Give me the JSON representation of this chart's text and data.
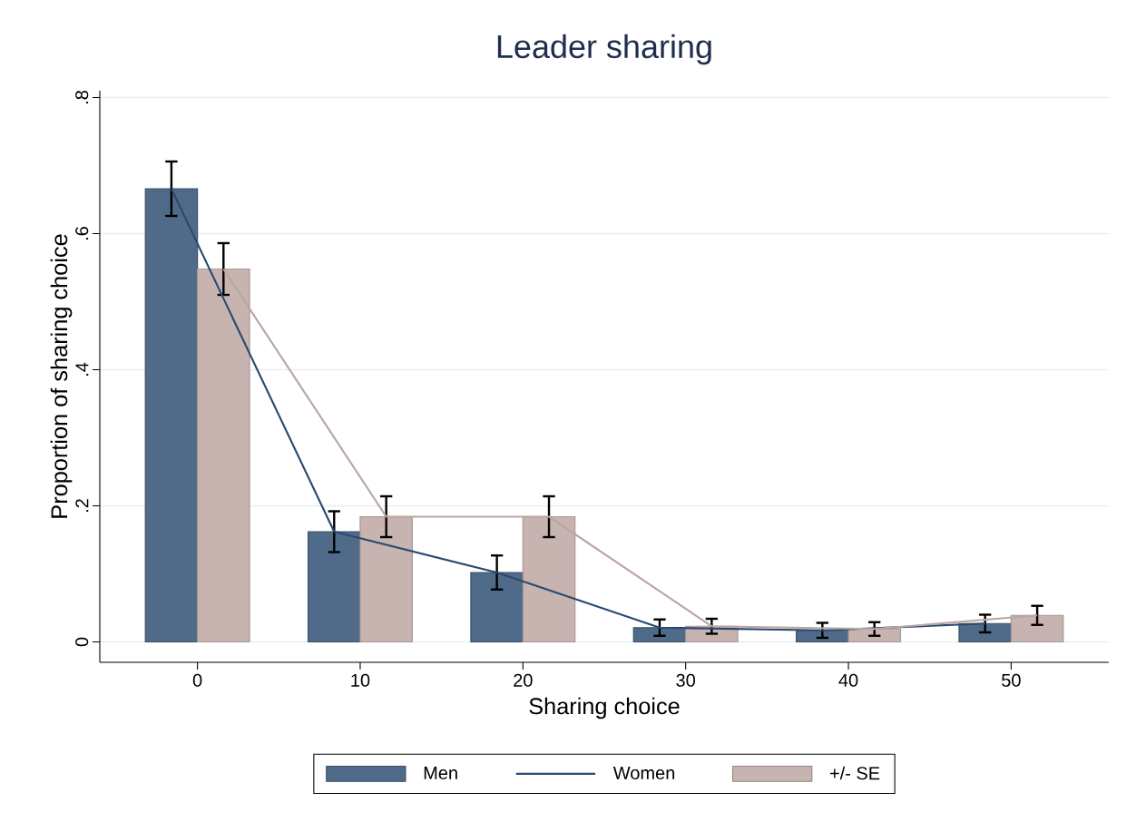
{
  "chart_data": {
    "type": "bar",
    "title": "Leader sharing",
    "xlabel": "Sharing choice",
    "ylabel": "Proportion of sharing choice",
    "series": [
      {
        "name": "Men",
        "color": "#4f6b89",
        "x": [
          -1.6,
          8.4,
          18.4,
          28.4,
          38.4,
          48.4
        ],
        "values": [
          0.666,
          0.162,
          0.102,
          0.021,
          0.017,
          0.027
        ],
        "errors": [
          0.04,
          0.03,
          0.025,
          0.012,
          0.011,
          0.013
        ]
      },
      {
        "type": "line",
        "name": "Women",
        "color": "#2a4a70",
        "x": [
          -1.6,
          8.4,
          18.4,
          28.4,
          38.4,
          48.4
        ],
        "values": [
          0.666,
          0.162,
          0.102,
          0.021,
          0.017,
          0.027
        ]
      },
      {
        "name": "+/- SE",
        "color": "#c7b3af",
        "x": [
          1.6,
          11.6,
          21.6,
          31.6,
          41.6,
          51.6
        ],
        "values": [
          0.548,
          0.184,
          0.184,
          0.023,
          0.019,
          0.039
        ],
        "errors": [
          0.038,
          0.03,
          0.03,
          0.011,
          0.01,
          0.014
        ]
      },
      {
        "type": "line",
        "color": "#bba6a1",
        "x": [
          1.6,
          11.6,
          21.6,
          31.6,
          41.6,
          51.6
        ],
        "values": [
          0.548,
          0.184,
          0.184,
          0.023,
          0.019,
          0.039
        ]
      }
    ],
    "xlim": [
      -6,
      56
    ],
    "xticks": [
      0,
      10,
      20,
      30,
      40,
      50
    ],
    "ylim": [
      -0.03,
      0.81
    ],
    "yticks": [
      0,
      {
        "value": 0.2,
        "label": ".2"
      },
      {
        "value": 0.4,
        "label": ".4"
      },
      {
        "value": 0.6,
        "label": ".6"
      },
      {
        "value": 0.8,
        "label": ".8"
      }
    ],
    "grid": "y",
    "legend": "bottom"
  }
}
